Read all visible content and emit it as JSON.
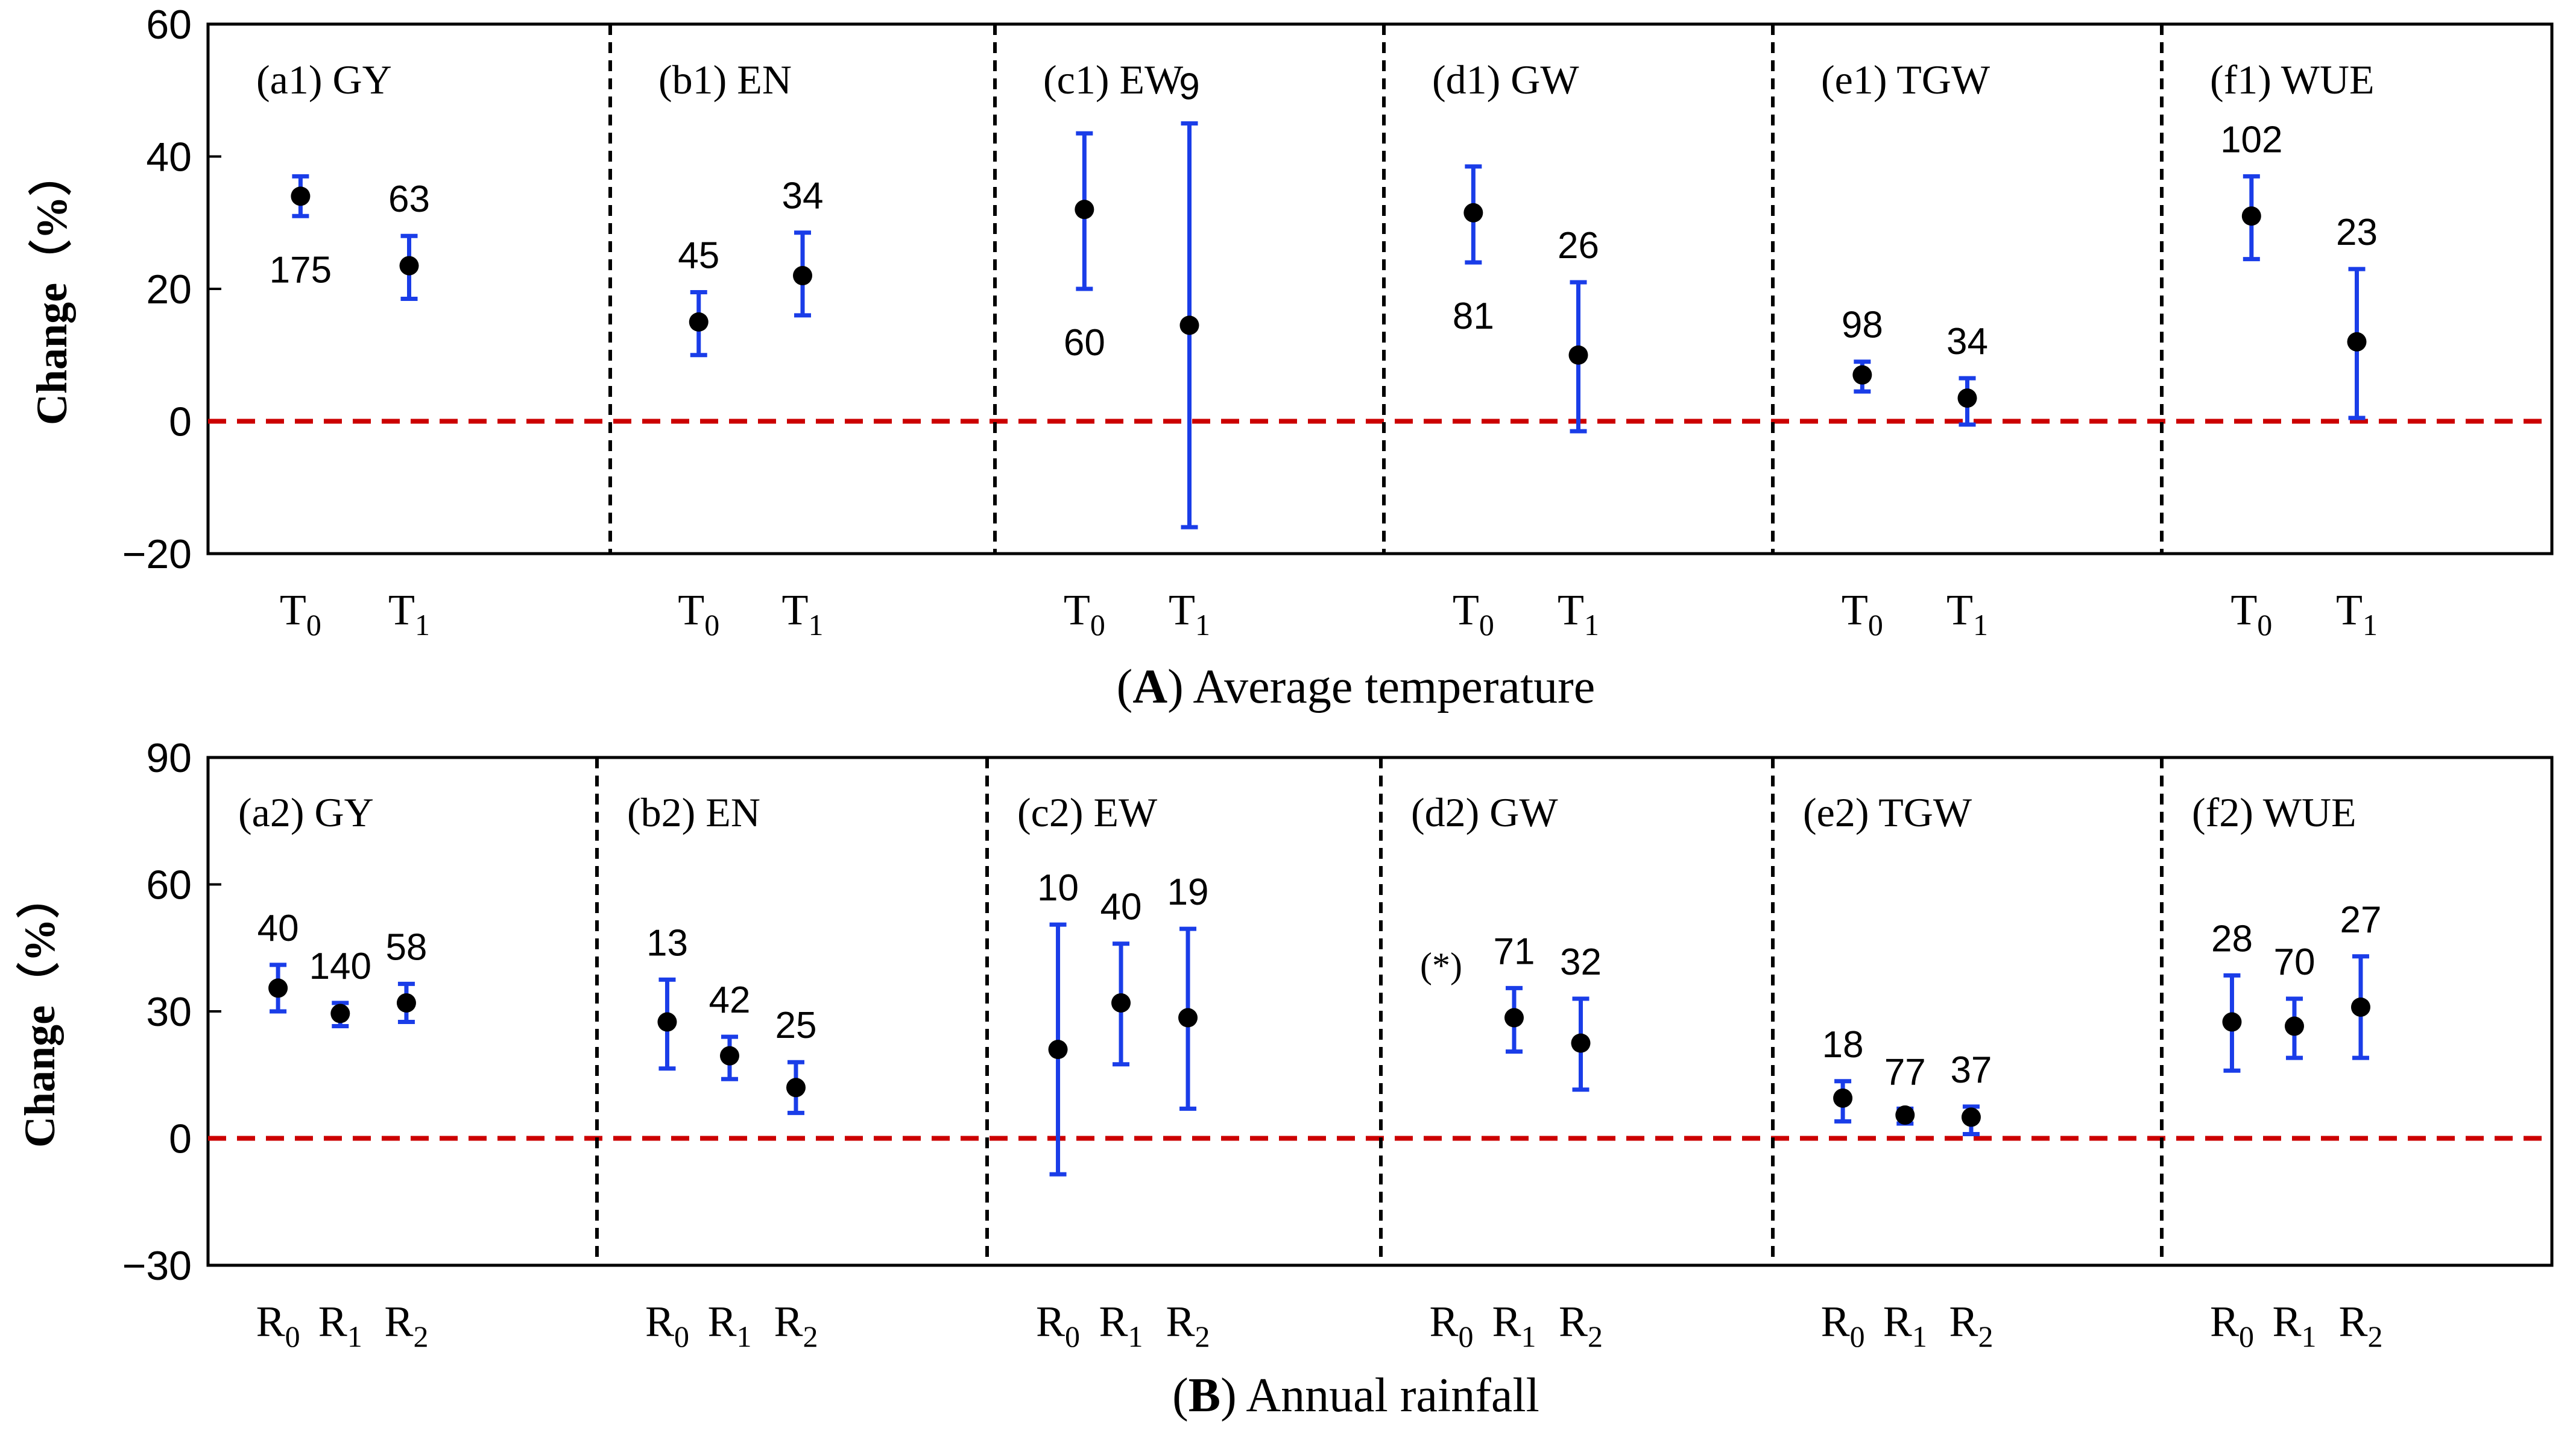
{
  "colors": {
    "errorbar": "#1a3de8",
    "point": "#000000",
    "zero_line": "#cc0000",
    "frame": "#000000",
    "divider": "#000000"
  },
  "chart_data": [
    {
      "type": "scatter",
      "id": "A",
      "caption": {
        "letter": "A",
        "text": "Average temperature"
      },
      "ylabel": "Change（%）",
      "ylim": [
        -20,
        60
      ],
      "yticks": [
        "−20",
        "0",
        "20",
        "40",
        "60"
      ],
      "ytick_values": [
        -20,
        0,
        20,
        40,
        60
      ],
      "zero_line": 0,
      "panels": [
        {
          "title": "(a1) GY",
          "points": [
            {
              "base": "T",
              "sub": "0",
              "y": 34,
              "lo": 31,
              "hi": 37,
              "n": "175",
              "label_pos": "below"
            },
            {
              "base": "T",
              "sub": "1",
              "y": 23.5,
              "lo": 18.5,
              "hi": 28,
              "n": "63",
              "label_pos": "above"
            }
          ]
        },
        {
          "title": "(b1) EN",
          "points": [
            {
              "base": "T",
              "sub": "0",
              "y": 15,
              "lo": 10,
              "hi": 19.5,
              "n": "45",
              "label_pos": "above"
            },
            {
              "base": "T",
              "sub": "1",
              "y": 22,
              "lo": 16,
              "hi": 28.5,
              "n": "34",
              "label_pos": "above"
            }
          ]
        },
        {
          "title": "(c1) EW",
          "points": [
            {
              "base": "T",
              "sub": "0",
              "y": 32,
              "lo": 20,
              "hi": 43.5,
              "n": "60",
              "label_pos": "below"
            },
            {
              "base": "T",
              "sub": "1",
              "y": 14.5,
              "lo": -16,
              "hi": 45,
              "n": "9",
              "label_pos": "above"
            }
          ]
        },
        {
          "title": "(d1) GW",
          "points": [
            {
              "base": "T",
              "sub": "0",
              "y": 31.5,
              "lo": 24,
              "hi": 38.5,
              "n": "81",
              "label_pos": "below"
            },
            {
              "base": "T",
              "sub": "1",
              "y": 10,
              "lo": -1.5,
              "hi": 21,
              "n": "26",
              "label_pos": "above"
            }
          ]
        },
        {
          "title": "(e1) TGW",
          "points": [
            {
              "base": "T",
              "sub": "0",
              "y": 7,
              "lo": 4.5,
              "hi": 9,
              "n": "98",
              "label_pos": "above"
            },
            {
              "base": "T",
              "sub": "1",
              "y": 3.5,
              "lo": -0.5,
              "hi": 6.5,
              "n": "34",
              "label_pos": "above"
            }
          ]
        },
        {
          "title": "(f1) WUE",
          "points": [
            {
              "base": "T",
              "sub": "0",
              "y": 31,
              "lo": 24.5,
              "hi": 37,
              "n": "102",
              "label_pos": "above"
            },
            {
              "base": "T",
              "sub": "1",
              "y": 12,
              "lo": 0.5,
              "hi": 23,
              "n": "23",
              "label_pos": "above"
            }
          ]
        }
      ]
    },
    {
      "type": "scatter",
      "id": "B",
      "caption": {
        "letter": "B",
        "text": "Annual rainfall"
      },
      "ylabel": "Change（%）",
      "ylim": [
        -30,
        90
      ],
      "yticks": [
        "−30",
        "0",
        "30",
        "60",
        "90"
      ],
      "ytick_values": [
        -30,
        0,
        30,
        60,
        90
      ],
      "zero_line": 0,
      "panels": [
        {
          "title": "(a2) GY",
          "points": [
            {
              "base": "R",
              "sub": "0",
              "y": 35.5,
              "lo": 30,
              "hi": 41,
              "n": "40",
              "label_pos": "above"
            },
            {
              "base": "R",
              "sub": "1",
              "y": 29.5,
              "lo": 26.5,
              "hi": 32,
              "n": "140",
              "label_pos": "above"
            },
            {
              "base": "R",
              "sub": "2",
              "y": 32,
              "lo": 27.5,
              "hi": 36.5,
              "n": "58",
              "label_pos": "above"
            }
          ]
        },
        {
          "title": "(b2) EN",
          "points": [
            {
              "base": "R",
              "sub": "0",
              "y": 27.5,
              "lo": 16.5,
              "hi": 37.5,
              "n": "13",
              "label_pos": "above"
            },
            {
              "base": "R",
              "sub": "1",
              "y": 19.5,
              "lo": 14,
              "hi": 24,
              "n": "42",
              "label_pos": "above"
            },
            {
              "base": "R",
              "sub": "2",
              "y": 12,
              "lo": 6,
              "hi": 18,
              "n": "25",
              "label_pos": "above"
            }
          ]
        },
        {
          "title": "(c2) EW",
          "points": [
            {
              "base": "R",
              "sub": "0",
              "y": 21,
              "lo": -8.5,
              "hi": 50.5,
              "n": "10",
              "label_pos": "above"
            },
            {
              "base": "R",
              "sub": "1",
              "y": 32,
              "lo": 17.5,
              "hi": 46,
              "n": "40",
              "label_pos": "above"
            },
            {
              "base": "R",
              "sub": "2",
              "y": 28.5,
              "lo": 7,
              "hi": 49.5,
              "n": "19",
              "label_pos": "above"
            }
          ]
        },
        {
          "title": "(d2) GW",
          "note": "(*)",
          "points": [
            {
              "base": "R",
              "sub": "0",
              "y": null,
              "lo": null,
              "hi": null,
              "n": "",
              "label_pos": "none"
            },
            {
              "base": "R",
              "sub": "1",
              "y": 28.5,
              "lo": 20.5,
              "hi": 35.5,
              "n": "71",
              "label_pos": "above"
            },
            {
              "base": "R",
              "sub": "2",
              "y": 22.5,
              "lo": 11.5,
              "hi": 33,
              "n": "32",
              "label_pos": "above"
            }
          ]
        },
        {
          "title": "(e2) TGW",
          "points": [
            {
              "base": "R",
              "sub": "0",
              "y": 9.5,
              "lo": 4,
              "hi": 13.5,
              "n": "18",
              "label_pos": "above"
            },
            {
              "base": "R",
              "sub": "1",
              "y": 5.5,
              "lo": 3.5,
              "hi": 7,
              "n": "77",
              "label_pos": "above"
            },
            {
              "base": "R",
              "sub": "2",
              "y": 5,
              "lo": 1,
              "hi": 7.5,
              "n": "37",
              "label_pos": "above"
            }
          ]
        },
        {
          "title": "(f2) WUE",
          "points": [
            {
              "base": "R",
              "sub": "0",
              "y": 27.5,
              "lo": 16,
              "hi": 38.5,
              "n": "28",
              "label_pos": "above"
            },
            {
              "base": "R",
              "sub": "1",
              "y": 26.5,
              "lo": 19,
              "hi": 33,
              "n": "70",
              "label_pos": "above"
            },
            {
              "base": "R",
              "sub": "2",
              "y": 31,
              "lo": 19,
              "hi": 43,
              "n": "27",
              "label_pos": "above"
            }
          ]
        }
      ]
    }
  ]
}
